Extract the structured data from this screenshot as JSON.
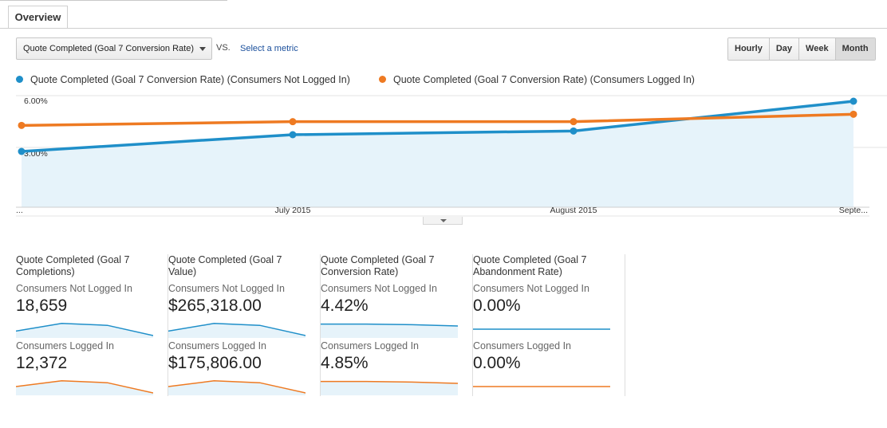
{
  "tabs": {
    "overview": "Overview"
  },
  "toolbar": {
    "metric_selected": "Quote Completed (Goal 7 Conversion Rate)",
    "vs_label": "VS.",
    "select_metric_link": "Select a metric",
    "granularity": [
      "Hourly",
      "Day",
      "Week",
      "Month"
    ],
    "granularity_active": "Month"
  },
  "colors": {
    "series1": "#1f8fc9",
    "series2": "#ee7a22",
    "area_fill": "#e6f3fa"
  },
  "legend": [
    {
      "label": "Quote Completed (Goal 7 Conversion Rate) (Consumers Not Logged In)"
    },
    {
      "label": "Quote Completed (Goal 7 Conversion Rate) (Consumers Logged In)"
    }
  ],
  "chart_data": {
    "type": "line",
    "ylabel_ticks": [
      "6.00%",
      "3.00%"
    ],
    "x_tick_labels": [
      "...",
      "July 2015",
      "August 2015",
      "Septe..."
    ],
    "series": [
      {
        "name": "Quote Completed (Goal 7 Conversion Rate) (Consumers Not Logged In)",
        "values": [
          3.0,
          3.9,
          4.1,
          5.7
        ]
      },
      {
        "name": "Quote Completed (Goal 7 Conversion Rate) (Consumers Logged In)",
        "values": [
          4.4,
          4.6,
          4.6,
          5.0
        ]
      }
    ],
    "ylim": [
      0,
      6
    ],
    "grid": true
  },
  "scorecards": [
    {
      "title": "Quote Completed (Goal 7 Completions)",
      "seg1_label": "Consumers Not Logged In",
      "seg1_value": "18,659",
      "seg2_label": "Consumers Logged In",
      "seg2_value": "12,372",
      "spark1": [
        0.35,
        0.95,
        0.8,
        0.0
      ],
      "spark2": [
        0.5,
        0.95,
        0.8,
        0.0
      ]
    },
    {
      "title": "Quote Completed (Goal 7 Value)",
      "seg1_label": "Consumers Not Logged In",
      "seg1_value": "$265,318.00",
      "seg2_label": "Consumers Logged In",
      "seg2_value": "$175,806.00",
      "spark1": [
        0.35,
        0.95,
        0.8,
        0.0
      ],
      "spark2": [
        0.5,
        0.95,
        0.8,
        0.0
      ]
    },
    {
      "title": "Quote Completed (Goal 7 Conversion Rate)",
      "seg1_label": "Consumers Not Logged In",
      "seg1_value": "4.42%",
      "seg2_label": "Consumers Logged In",
      "seg2_value": "4.85%",
      "spark1": [
        0.9,
        0.9,
        0.85,
        0.75
      ],
      "spark2": [
        0.9,
        0.9,
        0.85,
        0.75
      ]
    },
    {
      "title": "Quote Completed (Goal 7 Abandonment Rate)",
      "seg1_label": "Consumers Not Logged In",
      "seg1_value": "0.00%",
      "seg2_label": "Consumers Logged In",
      "seg2_value": "0.00%",
      "spark1": [
        0.5,
        0.5,
        0.5,
        0.5
      ],
      "spark2": [
        0.5,
        0.5,
        0.5,
        0.5
      ]
    }
  ]
}
